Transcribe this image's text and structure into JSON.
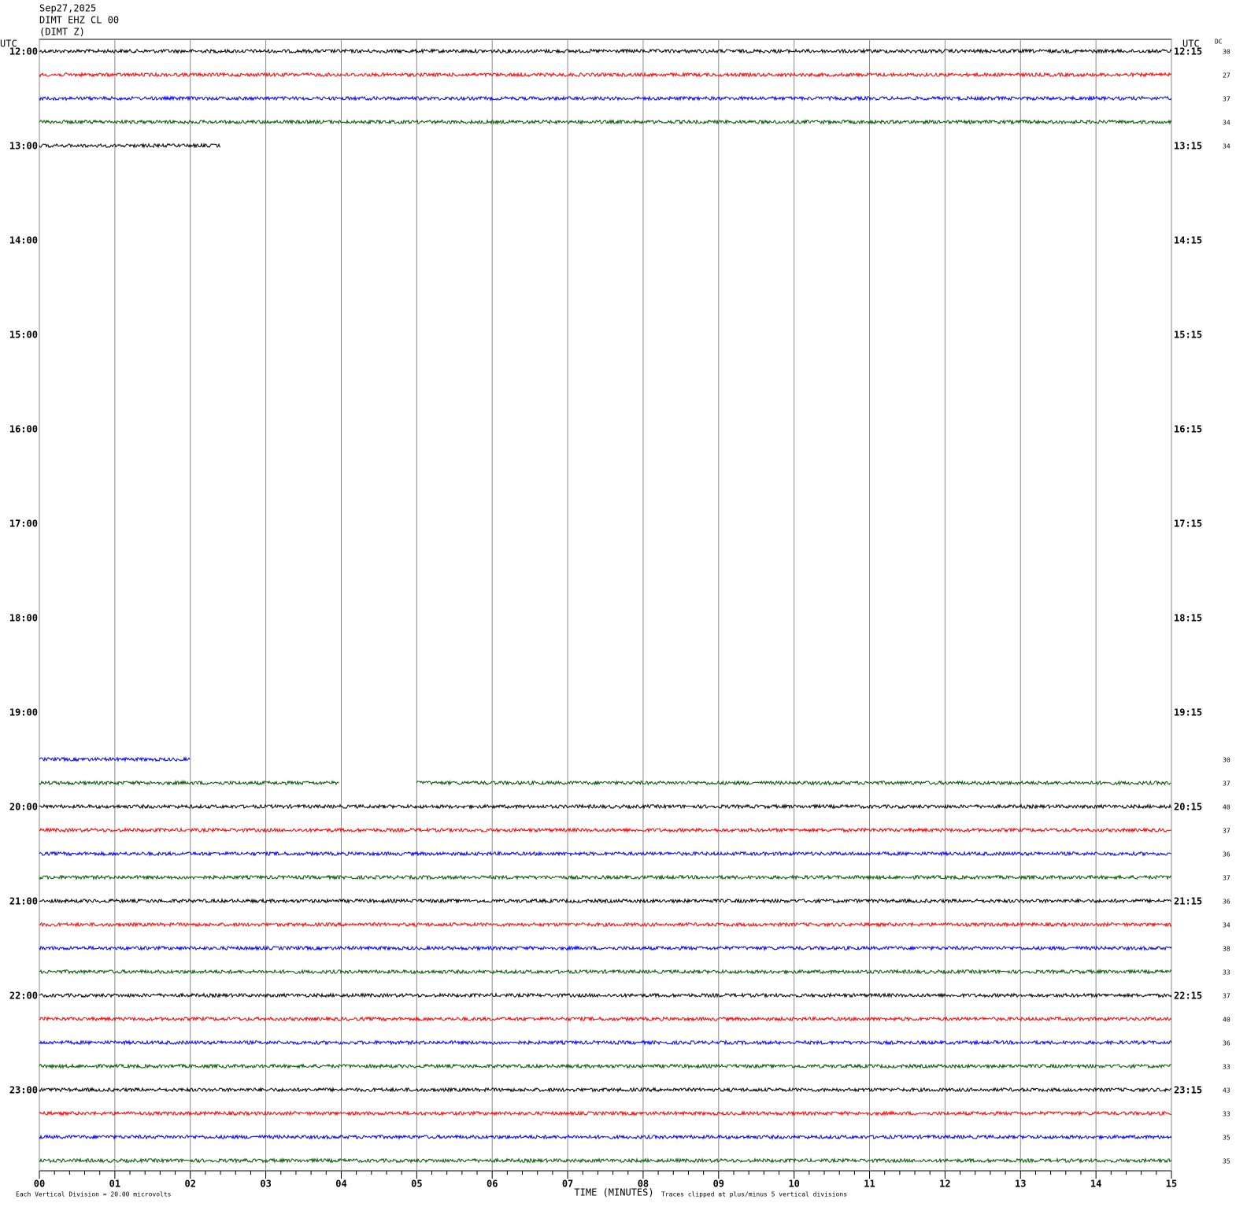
{
  "header": {
    "date": "Sep27,2025",
    "station": "DIMT EHZ CL 00",
    "component": "(DIMT Z)"
  },
  "chart_data": {
    "type": "helicorder",
    "x_label": "TIME (MINUTES)",
    "left_axis_title": "UTC",
    "right_axis_title": "UTC",
    "dc_title": "DC",
    "scale_note": "Each Vertical Division =   20.00 microvolts",
    "clip_note": "Traces clipped at plus/minus 5 vertical divisions",
    "xlim": [
      0,
      15
    ],
    "xticks": [
      {
        "value": 0,
        "label": "00"
      },
      {
        "value": 1,
        "label": "01"
      },
      {
        "value": 2,
        "label": "02"
      },
      {
        "value": 3,
        "label": "03"
      },
      {
        "value": 4,
        "label": "04"
      },
      {
        "value": 5,
        "label": "05"
      },
      {
        "value": 6,
        "label": "06"
      },
      {
        "value": 7,
        "label": "07"
      },
      {
        "value": 8,
        "label": "08"
      },
      {
        "value": 9,
        "label": "09"
      },
      10,
      11,
      12,
      13,
      14,
      15
    ],
    "rows_per_hour": 4,
    "colors": [
      "#000000",
      "#ff0000",
      "#0000ff",
      "#005a00"
    ],
    "hour_labels_left": [
      "12:00",
      "13:00",
      "14:00",
      "15:00",
      "16:00",
      "17:00",
      "18:00",
      "19:00",
      "20:00",
      "21:00",
      "22:00",
      "23:00"
    ],
    "hour_labels_right": [
      "12:15",
      "13:15",
      "14:15",
      "15:15",
      "16:15",
      "17:15",
      "18:15",
      "19:15",
      "20:15",
      "21:15",
      "22:15",
      "23:15"
    ],
    "rows": [
      {
        "dc": 30,
        "segments": [
          [
            0,
            15
          ]
        ]
      },
      {
        "dc": 27,
        "segments": [
          [
            0,
            15
          ]
        ]
      },
      {
        "dc": 37,
        "segments": [
          [
            0,
            15
          ]
        ]
      },
      {
        "dc": 34,
        "segments": [
          [
            0,
            15
          ]
        ]
      },
      {
        "dc": 34,
        "segments": [
          [
            0,
            2.4
          ]
        ]
      },
      null,
      null,
      null,
      null,
      null,
      null,
      null,
      null,
      null,
      null,
      null,
      null,
      null,
      null,
      null,
      null,
      null,
      null,
      null,
      null,
      null,
      null,
      null,
      null,
      null,
      {
        "dc": 30,
        "segments": [
          [
            0,
            2
          ]
        ]
      },
      {
        "dc": 37,
        "segments": [
          [
            0,
            3.97
          ],
          [
            5,
            15
          ]
        ]
      },
      {
        "dc": 40,
        "segments": [
          [
            0,
            15
          ]
        ]
      },
      {
        "dc": 37,
        "segments": [
          [
            0,
            15
          ]
        ]
      },
      {
        "dc": 36,
        "segments": [
          [
            0,
            15
          ]
        ]
      },
      {
        "dc": 37,
        "segments": [
          [
            0,
            15
          ]
        ]
      },
      {
        "dc": 36,
        "segments": [
          [
            0,
            15
          ]
        ]
      },
      {
        "dc": 34,
        "segments": [
          [
            0,
            15
          ]
        ]
      },
      {
        "dc": 38,
        "segments": [
          [
            0,
            15
          ]
        ]
      },
      {
        "dc": 33,
        "segments": [
          [
            0,
            15
          ]
        ]
      },
      {
        "dc": 37,
        "segments": [
          [
            0,
            15
          ]
        ]
      },
      {
        "dc": 40,
        "segments": [
          [
            0,
            15
          ]
        ]
      },
      {
        "dc": 36,
        "segments": [
          [
            0,
            15
          ]
        ]
      },
      {
        "dc": 33,
        "segments": [
          [
            0,
            15
          ]
        ]
      },
      {
        "dc": 43,
        "segments": [
          [
            0,
            15
          ]
        ]
      },
      {
        "dc": 33,
        "segments": [
          [
            0,
            15
          ]
        ]
      },
      {
        "dc": 35,
        "segments": [
          [
            0,
            15
          ]
        ]
      },
      {
        "dc": 35,
        "segments": [
          [
            0,
            15
          ]
        ]
      }
    ]
  }
}
